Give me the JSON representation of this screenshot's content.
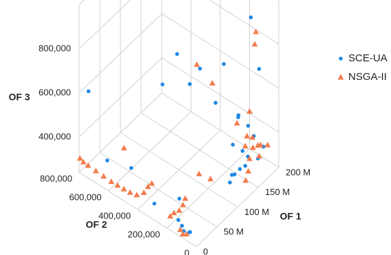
{
  "chart_data": {
    "type": "scatter3d",
    "x_label": "OF 1",
    "y_label": "OF 2",
    "z_label": "OF 3",
    "xlim": [
      0,
      200000000
    ],
    "ylim": [
      0,
      800000
    ],
    "zlim": [
      240000,
      1000000
    ],
    "xticks": [
      {
        "value": 0,
        "label": "0"
      },
      {
        "value": 50000000,
        "label": "50 M"
      },
      {
        "value": 100000000,
        "label": "100 M"
      },
      {
        "value": 150000000,
        "label": "150 M"
      },
      {
        "value": 200000000,
        "label": "200 M"
      }
    ],
    "yticks": [
      0,
      {
        "value": 200000,
        "label": "200,000"
      },
      {
        "value": 400000,
        "label": "400,000"
      },
      {
        "value": 600000,
        "label": "600,000"
      },
      {
        "value": 800000,
        "label": "800,000"
      }
    ],
    "zticks": [
      {
        "value": 400000,
        "label": "400,000"
      },
      {
        "value": 600000,
        "label": "600,000"
      },
      {
        "value": 800000,
        "label": "800,000"
      }
    ],
    "grid": true,
    "legend": "right",
    "series": [
      {
        "name": "SCE-UA",
        "color": "#1f88e5",
        "marker": "circle",
        "x": [
          150000000,
          20000000,
          60000000,
          80000000,
          120000000,
          170000000,
          60000000,
          100000000,
          120000000,
          5000000,
          130000000,
          140000000,
          110000000,
          150000000,
          130000000,
          100000000,
          120000000,
          140000000,
          160000000,
          90000000,
          110000000,
          15000000,
          5000000,
          10000000,
          5000000,
          8000000,
          12000000,
          3000000,
          20000000,
          170000000,
          150000000,
          30000000
        ],
        "y": [
          50000,
          100000,
          300000,
          200000,
          150000,
          50000,
          400000,
          150000,
          50000,
          750000,
          80000,
          40000,
          60000,
          30000,
          50000,
          20000,
          40000,
          60000,
          30000,
          10000,
          80000,
          650000,
          300000,
          150000,
          100000,
          120000,
          80000,
          50000,
          500000,
          20000,
          70000,
          200000
        ],
        "z": [
          990000,
          900000,
          880000,
          820000,
          790000,
          720000,
          700000,
          650000,
          600000,
          620000,
          560000,
          520000,
          480000,
          460000,
          420000,
          380000,
          360000,
          330000,
          340000,
          400000,
          300000,
          330000,
          300000,
          280000,
          260000,
          270000,
          250000,
          280000,
          350000,
          380000,
          350000,
          320000
        ]
      },
      {
        "name": "NSGA-II",
        "color": "#f47c4c",
        "marker": "triangle",
        "x": [
          180000000,
          90000000,
          170000000,
          110000000,
          140000000,
          120000000,
          130000000,
          150000000,
          140000000,
          160000000,
          170000000,
          180000000,
          155000000,
          145000000,
          165000000,
          135000000,
          125000000,
          20000000,
          2000000,
          3000000,
          4000000,
          5000000,
          6000000,
          7000000,
          8000000,
          9000000,
          10000000,
          12000000,
          15000000,
          18000000,
          20000000,
          8000000,
          10000000,
          12000000,
          14000000,
          16000000,
          3000000,
          5000000,
          4000000,
          60000000,
          70000000
        ],
        "y": [
          100000,
          250000,
          80000,
          200000,
          30000,
          60000,
          20000,
          40000,
          60000,
          30000,
          40000,
          20000,
          50000,
          45000,
          35000,
          25000,
          15000,
          550000,
          800000,
          780000,
          750000,
          700000,
          650000,
          600000,
          560000,
          520000,
          480000,
          440000,
          400000,
          380000,
          360000,
          200000,
          180000,
          150000,
          130000,
          120000,
          100000,
          80000,
          120000,
          150000,
          100000
        ],
        "z": [
          850000,
          800000,
          820000,
          700000,
          590000,
          560000,
          500000,
          450000,
          420000,
          400000,
          380000,
          370000,
          390000,
          360000,
          340000,
          330000,
          310000,
          420000,
          300000,
          290000,
          285000,
          280000,
          275000,
          270000,
          268000,
          266000,
          266000,
          268000,
          290000,
          320000,
          340000,
          280000,
          300000,
          320000,
          350000,
          380000,
          250000,
          255000,
          260000,
          400000,
          380000
        ]
      }
    ]
  }
}
